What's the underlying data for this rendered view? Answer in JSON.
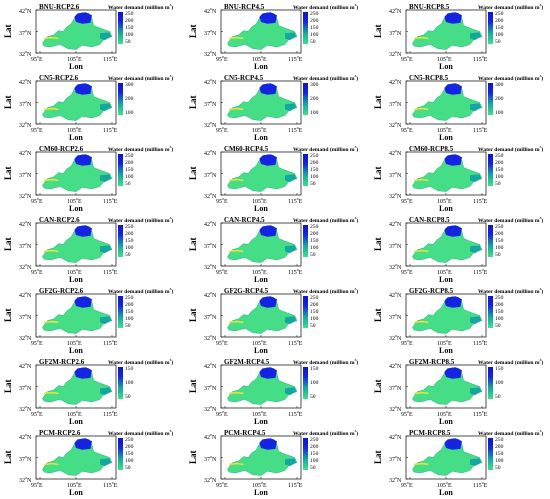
{
  "common": {
    "legend_title": "Water demand (million m",
    "legend_title_sup": "3",
    "legend_title_close": ")",
    "ylabel": "Lat",
    "xlabel": "Lon",
    "lat_ticks": [
      "42",
      "37",
      "32"
    ],
    "lat_suffix": "N",
    "lon_ticks": [
      "95",
      "105",
      "115"
    ],
    "lon_suffix": "E",
    "degree": "o",
    "colors": {
      "low": "#3be38a",
      "mid": "#16a6a0",
      "high": "#1424e0",
      "top": "#0a16c8",
      "basin": "#45dd85",
      "basin_dark": "#2bb38c",
      "river": "#e8e23a"
    }
  },
  "panels": [
    {
      "title": "BNU-RCP2.6",
      "cb": [
        "250",
        "200",
        "150",
        "100",
        "50"
      ]
    },
    {
      "title": "BNU-RCP4.5",
      "cb": [
        "250",
        "200",
        "150",
        "100",
        "50"
      ]
    },
    {
      "title": "BNU-RCP8.5",
      "cb": [
        "250",
        "200",
        "150",
        "100",
        "50"
      ]
    },
    {
      "title": "CN5-RCP2.6",
      "cb": [
        "300",
        "200",
        "100"
      ]
    },
    {
      "title": "CN5-RCP4.5",
      "cb": [
        "300",
        "200",
        "100"
      ]
    },
    {
      "title": "CN5-RCP8.5",
      "cb": [
        "300",
        "200",
        "100"
      ]
    },
    {
      "title": "CM60-RCP2.6",
      "cb": [
        "250",
        "200",
        "150",
        "100",
        "50"
      ]
    },
    {
      "title": "CM60-RCP4.5",
      "cb": [
        "250",
        "200",
        "150",
        "100",
        "50"
      ]
    },
    {
      "title": "CM60-RCP8.5",
      "cb": [
        "250",
        "200",
        "150",
        "100",
        "50"
      ]
    },
    {
      "title": "CAN-RCP2.6",
      "cb": [
        "250",
        "200",
        "150",
        "100",
        "50"
      ]
    },
    {
      "title": "CAN-RCP4.5",
      "cb": [
        "250",
        "200",
        "150",
        "100",
        "50"
      ]
    },
    {
      "title": "CAN-RCP8.5",
      "cb": [
        "250",
        "200",
        "150",
        "100",
        "50"
      ]
    },
    {
      "title": "GF2G-RCP2.6",
      "cb": [
        "250",
        "200",
        "150",
        "100",
        "50"
      ]
    },
    {
      "title": "GF2G-RCP4.5",
      "cb": [
        "250",
        "200",
        "150",
        "100",
        "50"
      ]
    },
    {
      "title": "GF2G-RCP8.5",
      "cb": [
        "250",
        "200",
        "150",
        "100",
        "50"
      ]
    },
    {
      "title": "GF2M-RCP2.6",
      "cb": [
        "150",
        "100",
        "50"
      ]
    },
    {
      "title": "GF2M-RCP4.5",
      "cb": [
        "150",
        "100",
        "50"
      ]
    },
    {
      "title": "GF2M-RCP8.5",
      "cb": [
        "150",
        "100",
        "50"
      ]
    },
    {
      "title": "PCM-RCP2.6",
      "cb": [
        "250",
        "200",
        "150",
        "100",
        "50"
      ]
    },
    {
      "title": "PCM-RCP4.5",
      "cb": [
        "250",
        "200",
        "150",
        "100",
        "50"
      ]
    },
    {
      "title": "PCM-RCP8.5",
      "cb": [
        "250",
        "200",
        "150",
        "100",
        "50"
      ]
    }
  ]
}
